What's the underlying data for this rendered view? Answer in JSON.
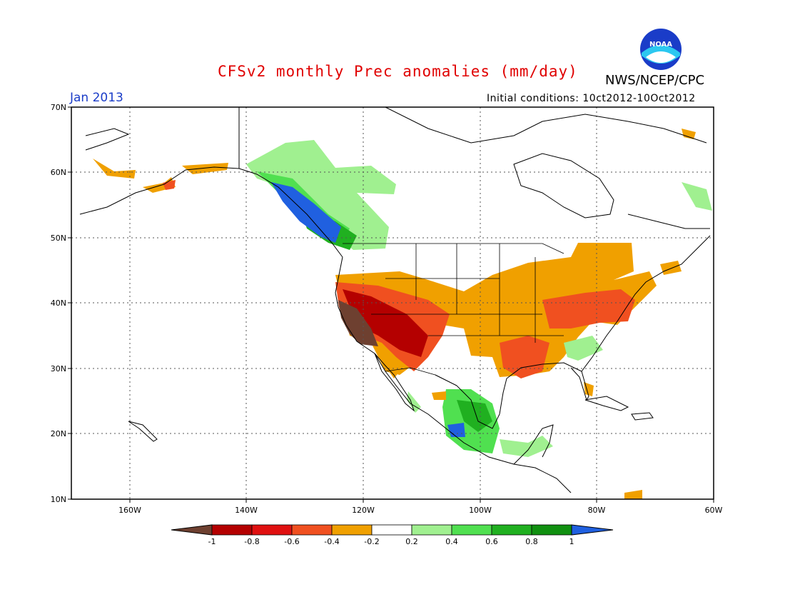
{
  "header": {
    "title": "CFSv2 monthly Prec anomalies (mm/day)",
    "month": "Jan 2013",
    "initial_conditions": "Initial conditions: 10ct2012-10Oct2012",
    "organization": "NWS/NCEP/CPC",
    "logo_text": "NOAA"
  },
  "map": {
    "lat_labels": [
      "70N",
      "60N",
      "50N",
      "40N",
      "30N",
      "20N",
      "10N"
    ],
    "lon_labels": [
      "160W",
      "140W",
      "120W",
      "100W",
      "80W",
      "60W"
    ],
    "lat_range": [
      10,
      70
    ],
    "lon_range": [
      -170,
      -60
    ],
    "grid": "dotted",
    "anomaly_regions": [
      {
        "name": "california-southwest",
        "category": "-1"
      },
      {
        "name": "southwest-interior",
        "category": "-0.8"
      },
      {
        "name": "great-basin",
        "category": "-0.6"
      },
      {
        "name": "central-plains-midwest",
        "category": "-0.4"
      },
      {
        "name": "great-lakes-ontario",
        "category": "-0.4"
      },
      {
        "name": "lower-mississippi",
        "category": "-0.6"
      },
      {
        "name": "mid-atlantic",
        "category": "-0.6"
      },
      {
        "name": "alaska-coast",
        "category": "-0.4"
      },
      {
        "name": "british-columbia-coast",
        "category": "1"
      },
      {
        "name": "western-canada",
        "category": "0.4"
      },
      {
        "name": "mexico-west",
        "category": "0.6"
      },
      {
        "name": "southeast-us",
        "category": "0.4"
      }
    ]
  },
  "colorbar": {
    "labels": [
      "-1",
      "-0.8",
      "-0.6",
      "-0.4",
      "-0.2",
      "0.2",
      "0.4",
      "0.6",
      "0.8",
      "1"
    ],
    "colors": [
      "#6e4030",
      "#b40000",
      "#e01010",
      "#f05020",
      "#f0a000",
      "#ffffff",
      "#a0f090",
      "#50e050",
      "#20b020",
      "#109010",
      "#2060e0"
    ]
  }
}
